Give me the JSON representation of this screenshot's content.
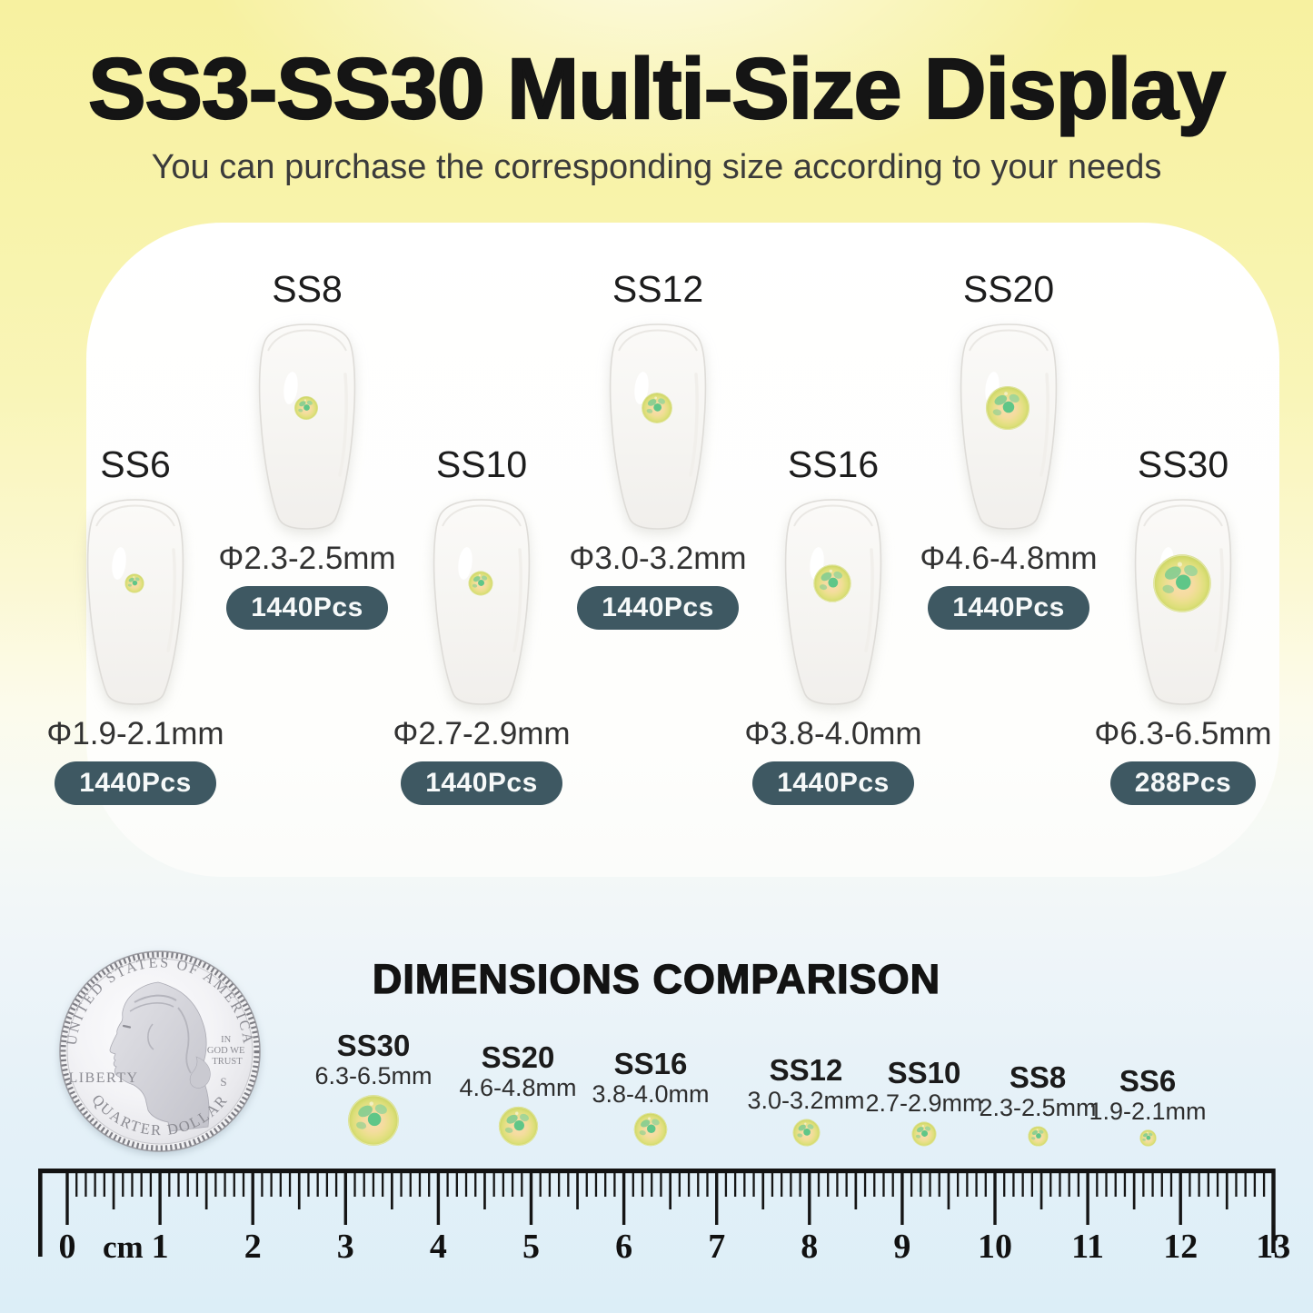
{
  "header": {
    "title": "SS3-SS30 Multi-Size Display",
    "subtitle": "You can purchase the corresponding size according to your needs"
  },
  "sizes": [
    {
      "label": "SS6",
      "diameter": "Φ1.9-2.1mm",
      "count": "1440Pcs"
    },
    {
      "label": "SS8",
      "diameter": "Φ2.3-2.5mm",
      "count": "1440Pcs"
    },
    {
      "label": "SS10",
      "diameter": "Φ2.7-2.9mm",
      "count": "1440Pcs"
    },
    {
      "label": "SS12",
      "diameter": "Φ3.0-3.2mm",
      "count": "1440Pcs"
    },
    {
      "label": "SS16",
      "diameter": "Φ3.8-4.0mm",
      "count": "1440Pcs"
    },
    {
      "label": "SS20",
      "diameter": "Φ4.6-4.8mm",
      "count": "1440Pcs"
    },
    {
      "label": "SS30",
      "diameter": "Φ6.3-6.5mm",
      "count": "288Pcs"
    }
  ],
  "comparison": {
    "heading": "DIMENSIONS COMPARISON",
    "coin": {
      "top": "UNITED STATES OF AMERICA",
      "bottom": "QUARTER DOLLAR",
      "liberty": "LIBERTY",
      "motto": [
        "IN",
        "GOD WE",
        "TRUST"
      ],
      "mint": "S"
    },
    "dots": [
      {
        "label": "SS30",
        "size": "6.3-6.5mm"
      },
      {
        "label": "SS20",
        "size": "4.6-4.8mm"
      },
      {
        "label": "SS16",
        "size": "3.8-4.0mm"
      },
      {
        "label": "SS12",
        "size": "3.0-3.2mm"
      },
      {
        "label": "SS10",
        "size": "2.7-2.9mm"
      },
      {
        "label": "SS8",
        "size": "2.3-2.5mm"
      },
      {
        "label": "SS6",
        "size": "1.9-2.1mm"
      }
    ],
    "ruler": {
      "unit": "cm",
      "start": 0,
      "end": 13
    }
  },
  "palette": {
    "top_background": "#F8F3AA",
    "bottom_background": "#DCEEF7",
    "panel": "#FFFFFF",
    "pill_background": "#3E5862",
    "pill_text": "#FFFFFF",
    "stone_rim": "#C6CF5E",
    "stone_center": "#F8DCA6",
    "stone_green": "#5FC688",
    "text_dark": "#1C1C1C"
  }
}
